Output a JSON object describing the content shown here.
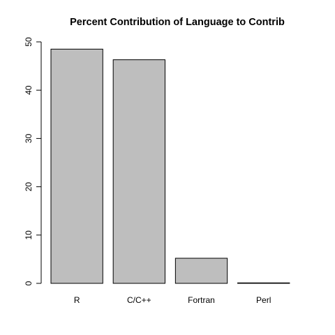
{
  "chart_data": {
    "type": "bar",
    "title": "Percent Contribution of Language to Contrib",
    "xlabel": "",
    "ylabel": "",
    "categories": [
      "R",
      "C/C++",
      "Fortran",
      "Perl"
    ],
    "values": [
      48.5,
      46.3,
      5.2,
      0.1
    ],
    "ylim": [
      0,
      50
    ],
    "yticks": [
      "0",
      "10",
      "20",
      "30",
      "40",
      "50"
    ],
    "bar_color": "#bebebe",
    "grid": false,
    "legend": "none"
  }
}
